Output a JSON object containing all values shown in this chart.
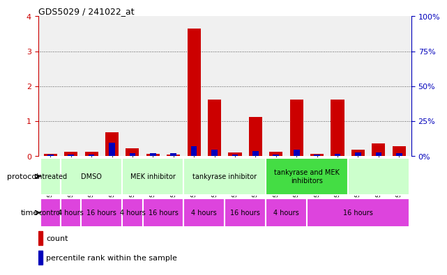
{
  "title": "GDS5029 / 241022_at",
  "samples": [
    "GSM1340521",
    "GSM1340522",
    "GSM1340523",
    "GSM1340524",
    "GSM1340531",
    "GSM1340532",
    "GSM1340527",
    "GSM1340528",
    "GSM1340535",
    "GSM1340536",
    "GSM1340525",
    "GSM1340526",
    "GSM1340533",
    "GSM1340534",
    "GSM1340529",
    "GSM1340530",
    "GSM1340537",
    "GSM1340538"
  ],
  "red_values": [
    0.05,
    0.12,
    0.12,
    0.68,
    0.22,
    0.05,
    0.04,
    3.65,
    1.62,
    0.1,
    1.12,
    0.12,
    1.62,
    0.05,
    1.62,
    0.18,
    0.36,
    0.28
  ],
  "blue_values": [
    0.04,
    0.04,
    0.04,
    0.38,
    0.07,
    0.07,
    0.07,
    0.28,
    0.17,
    0.04,
    0.13,
    0.04,
    0.17,
    0.04,
    0.06,
    0.09,
    0.09,
    0.07
  ],
  "ylim_left": [
    0,
    4
  ],
  "ylim_right": [
    0,
    100
  ],
  "yticks_left": [
    0,
    1,
    2,
    3,
    4
  ],
  "yticks_right": [
    0,
    25,
    50,
    75,
    100
  ],
  "bar_color_red": "#cc0000",
  "bar_color_blue": "#0000bb",
  "axis_color_left": "#cc0000",
  "axis_color_right": "#0000bb",
  "grid_color": "#555555",
  "bg_color": "#ffffff",
  "chart_bg_color": "#f0f0f0",
  "proto_color_light": "#ccffcc",
  "proto_color_bright": "#44dd44",
  "time_color": "#dd44dd",
  "proto_groups": [
    {
      "label": "untreated",
      "start": 0,
      "end": 1,
      "bright": false
    },
    {
      "label": "DMSO",
      "start": 1,
      "end": 4,
      "bright": false
    },
    {
      "label": "MEK inhibitor",
      "start": 4,
      "end": 7,
      "bright": false
    },
    {
      "label": "tankyrase inhibitor",
      "start": 7,
      "end": 11,
      "bright": false
    },
    {
      "label": "tankyrase and MEK\ninhibitors",
      "start": 11,
      "end": 15,
      "bright": true
    },
    {
      "label": "",
      "start": 15,
      "end": 18,
      "bright": false
    }
  ],
  "time_groups": [
    {
      "label": "control",
      "start": 0,
      "end": 1
    },
    {
      "label": "4 hours",
      "start": 1,
      "end": 2
    },
    {
      "label": "16 hours",
      "start": 2,
      "end": 4
    },
    {
      "label": "4 hours",
      "start": 4,
      "end": 5
    },
    {
      "label": "16 hours",
      "start": 5,
      "end": 7
    },
    {
      "label": "4 hours",
      "start": 7,
      "end": 9
    },
    {
      "label": "16 hours",
      "start": 9,
      "end": 11
    },
    {
      "label": "4 hours",
      "start": 11,
      "end": 13
    },
    {
      "label": "16 hours",
      "start": 13,
      "end": 18
    }
  ]
}
